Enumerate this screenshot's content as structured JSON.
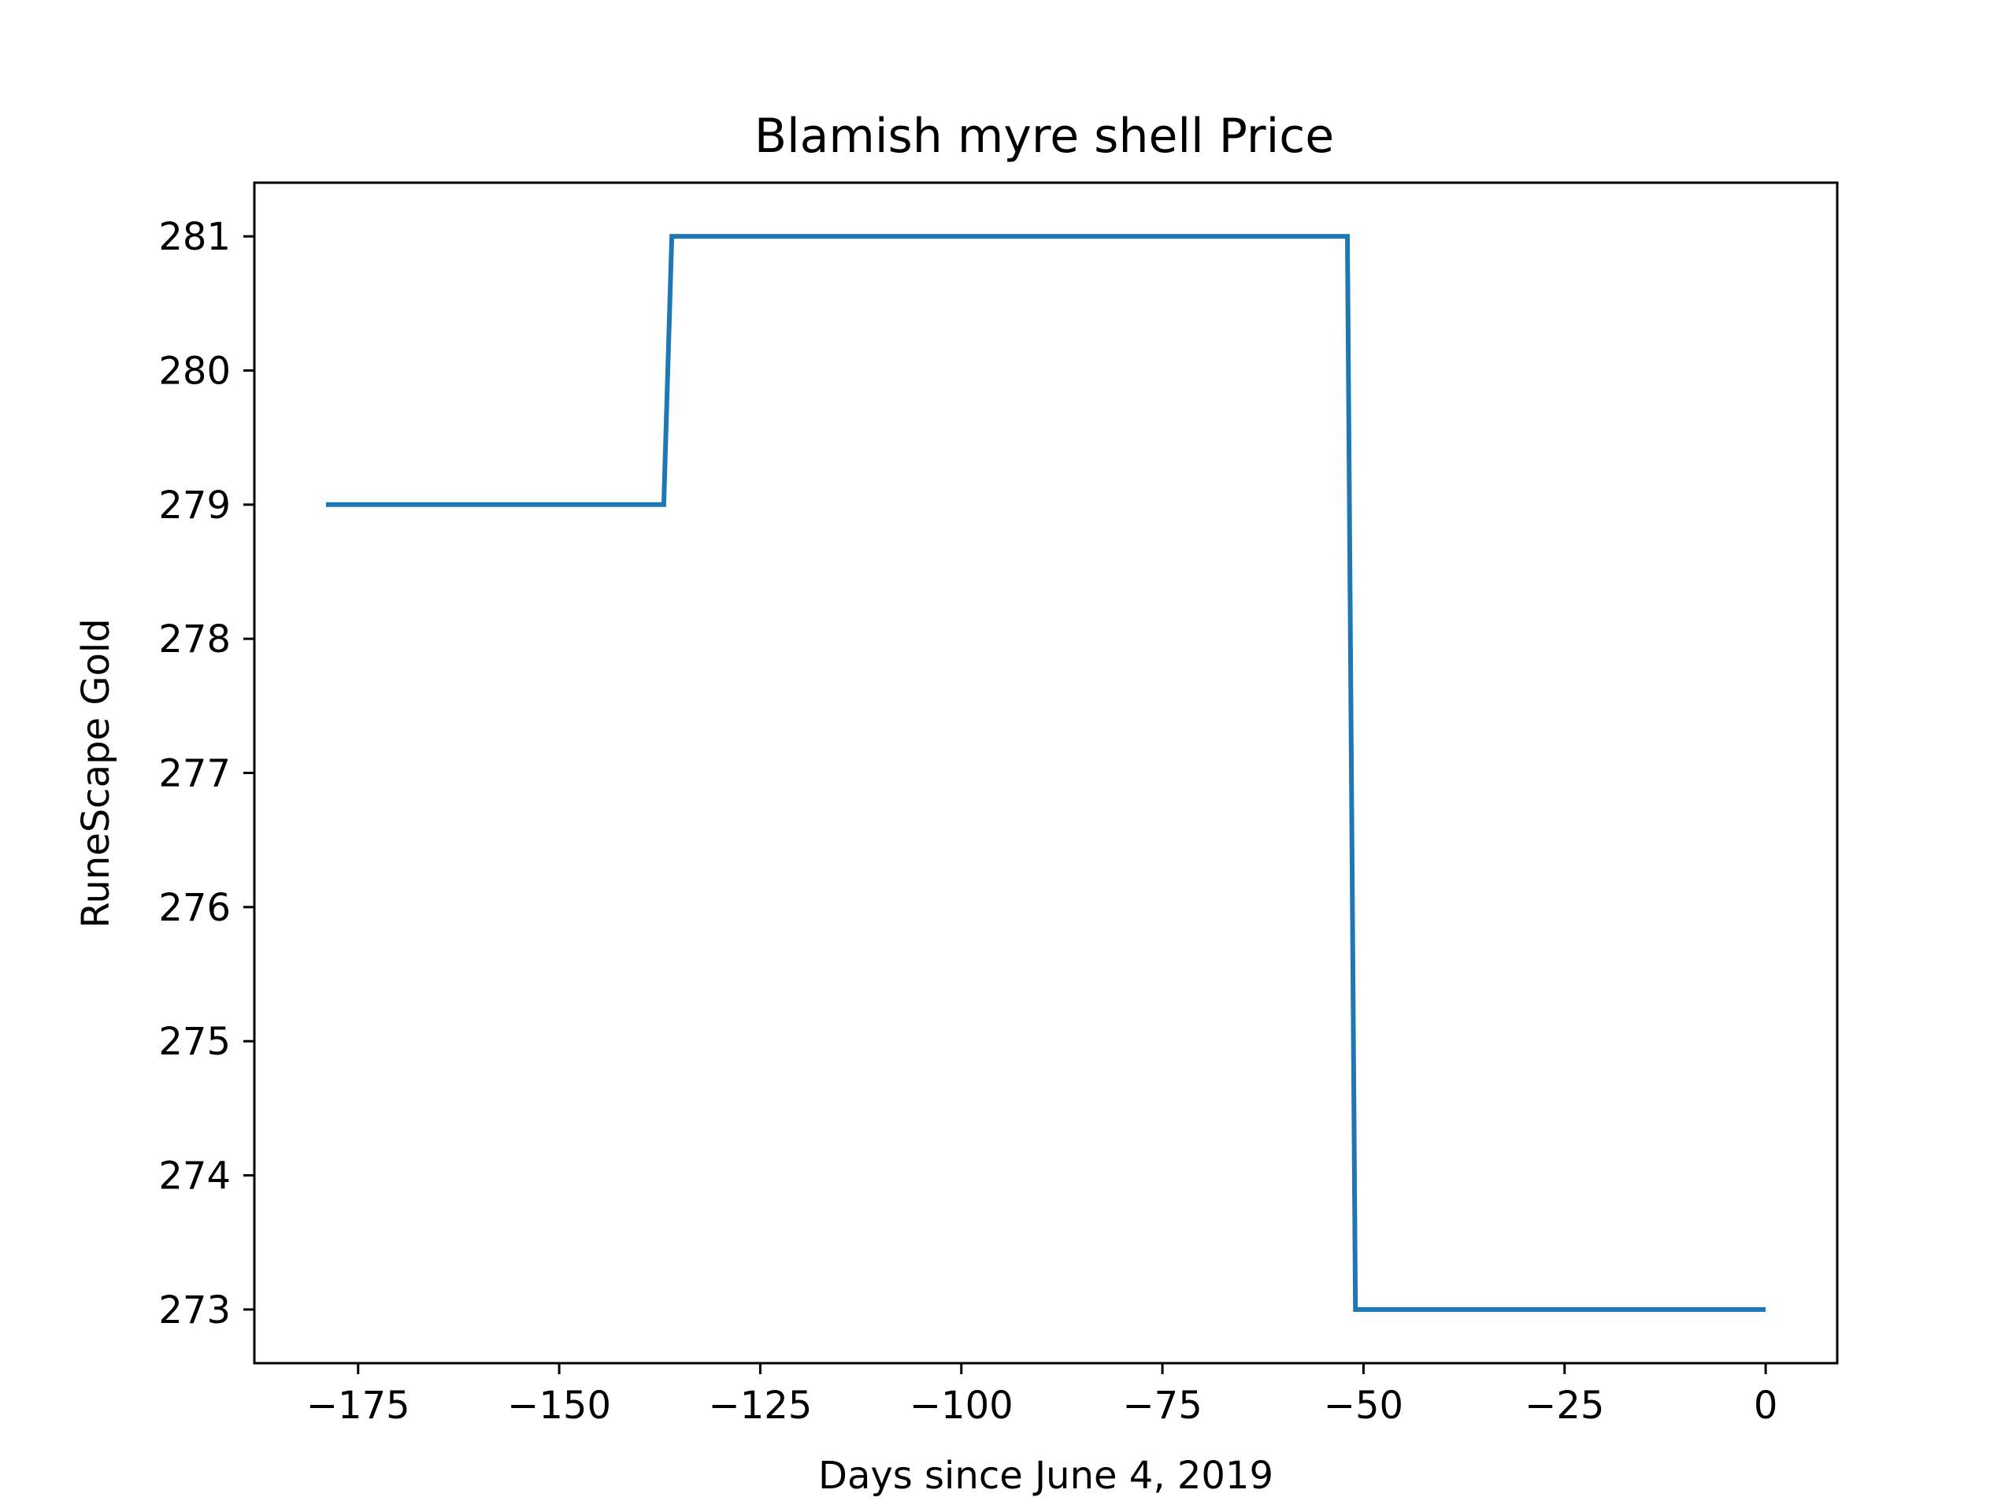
{
  "chart_data": {
    "type": "line",
    "title": "Blamish myre shell Price",
    "xlabel": "Days since June 4, 2019",
    "ylabel": "RuneScape Gold",
    "xlim": [
      -187.9,
      8.9
    ],
    "ylim": [
      272.6,
      281.4
    ],
    "xticks": [
      -175,
      -150,
      -125,
      -100,
      -75,
      -50,
      -25,
      0
    ],
    "xtick_labels": [
      "−175",
      "−150",
      "−125",
      "−100",
      "−75",
      "−50",
      "−25",
      "0"
    ],
    "yticks": [
      273,
      274,
      275,
      276,
      277,
      278,
      279,
      280,
      281
    ],
    "ytick_labels": [
      "273",
      "274",
      "275",
      "276",
      "277",
      "278",
      "279",
      "280",
      "281"
    ],
    "grid": false,
    "series": [
      {
        "color": "#1f77b4",
        "x": [
          -179,
          -137,
          -136,
          -52,
          -51,
          0
        ],
        "y": [
          279,
          279,
          281,
          281,
          273,
          273
        ]
      }
    ]
  }
}
